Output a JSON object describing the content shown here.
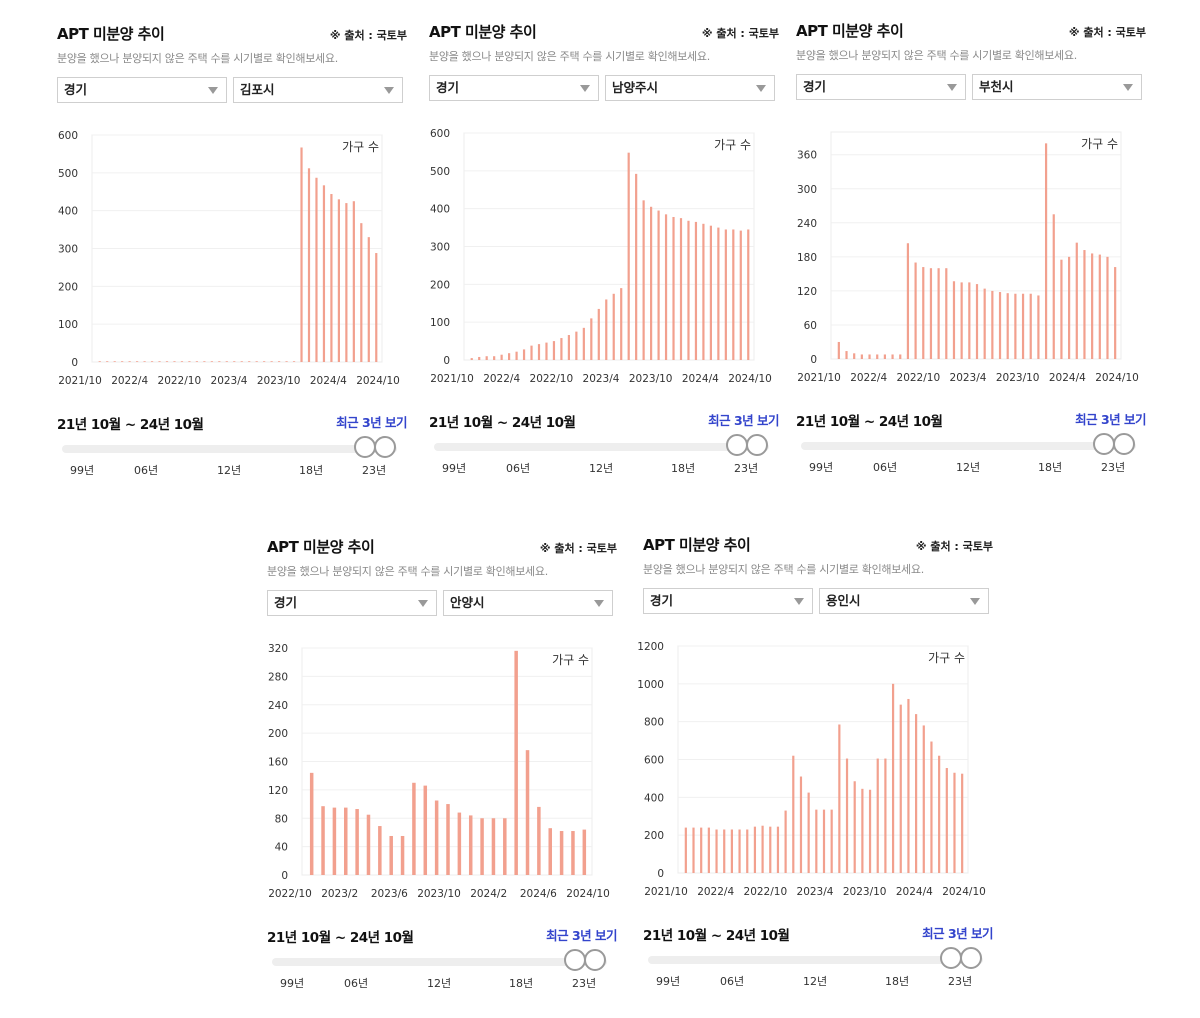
{
  "common": {
    "title": "APT 미분양 추이",
    "source": "※ 출처 : 국토부",
    "description": "분양을 했으나 분양되지 않은 주택 수를 시기별로 확인해보세요.",
    "province": "경기",
    "unit_label": "가구 수",
    "range_text": "21년 10월 ~ 24년 10월",
    "recent_button": "최근 3년 보기",
    "slider_ticks": [
      "99년",
      "06년",
      "12년",
      "18년",
      "23년"
    ],
    "bar_color": "#f2a08e"
  },
  "panels": [
    {
      "city": "김포시",
      "chart_data": {
        "type": "bar",
        "series": [
          {
            "values": [
              2,
              2,
              2,
              2,
              2,
              2,
              2,
              2,
              2,
              2,
              2,
              2,
              2,
              2,
              2,
              2,
              2,
              2,
              2,
              2,
              2,
              2,
              2,
              2,
              2,
              2,
              2,
              567,
              512,
              487,
              467,
              444,
              430,
              420,
              425,
              367,
              330,
              288
            ]
          }
        ],
        "y_ticks": [
          0,
          100,
          200,
          300,
          400,
          500,
          600
        ],
        "ylim": [
          0,
          600
        ],
        "x_tick_labels": [
          "2021/10",
          "2022/4",
          "2022/10",
          "2023/4",
          "2023/10",
          "2024/4",
          "2024/10"
        ]
      }
    },
    {
      "city": "남양주시",
      "chart_data": {
        "type": "bar",
        "series": [
          {
            "values": [
              5,
              8,
              10,
              10,
              14,
              18,
              22,
              28,
              38,
              42,
              46,
              50,
              58,
              66,
              75,
              85,
              110,
              135,
              160,
              175,
              190,
              548,
              492,
              422,
              405,
              395,
              385,
              378,
              375,
              368,
              365,
              360,
              355,
              350,
              345,
              345,
              342,
              345
            ]
          }
        ],
        "y_ticks": [
          0,
          100,
          200,
          300,
          400,
          500,
          600
        ],
        "ylim": [
          0,
          600
        ],
        "x_tick_labels": [
          "2021/10",
          "2022/4",
          "2022/10",
          "2023/4",
          "2023/10",
          "2024/4",
          "2024/10"
        ]
      }
    },
    {
      "city": "부천시",
      "chart_data": {
        "type": "bar",
        "series": [
          {
            "values": [
              30,
              14,
              10,
              8,
              8,
              8,
              8,
              8,
              8,
              204,
              170,
              162,
              160,
              160,
              160,
              137,
              135,
              135,
              132,
              124,
              120,
              118,
              116,
              115,
              115,
              115,
              112,
              380,
              255,
              175,
              180,
              205,
              192,
              186,
              184,
              180,
              162
            ]
          }
        ],
        "y_ticks": [
          0,
          60,
          120,
          180,
          240,
          300,
          360
        ],
        "ylim": [
          0,
          400
        ],
        "x_tick_labels": [
          "2021/10",
          "2022/4",
          "2022/10",
          "2023/4",
          "2023/10",
          "2024/4",
          "2024/10"
        ]
      }
    },
    {
      "city": "안양시",
      "chart_data": {
        "type": "bar",
        "series": [
          {
            "values": [
              144,
              97,
              95,
              95,
              93,
              85,
              69,
              55,
              55,
              130,
              126,
              105,
              100,
              88,
              84,
              80,
              80,
              80,
              316,
              176,
              96,
              66,
              62,
              62,
              64
            ]
          }
        ],
        "y_ticks": [
          0,
          40,
          80,
          120,
          160,
          200,
          240,
          280,
          320
        ],
        "ylim": [
          0,
          320
        ],
        "x_tick_labels": [
          "2022/10",
          "2023/2",
          "2023/6",
          "2023/10",
          "2024/2",
          "2024/6",
          "2024/10"
        ]
      }
    },
    {
      "city": "용인시",
      "chart_data": {
        "type": "bar",
        "series": [
          {
            "values": [
              240,
              240,
              240,
              240,
              230,
              230,
              230,
              230,
              230,
              245,
              250,
              245,
              245,
              330,
              620,
              510,
              425,
              335,
              335,
              335,
              785,
              605,
              485,
              445,
              440,
              605,
              605,
              1000,
              890,
              920,
              840,
              780,
              695,
              620,
              555,
              530,
              525
            ]
          }
        ],
        "y_ticks": [
          0,
          200,
          400,
          600,
          800,
          1000,
          1200
        ],
        "ylim": [
          0,
          1200
        ],
        "x_tick_labels": [
          "2021/10",
          "2022/4",
          "2022/10",
          "2023/4",
          "2023/10",
          "2024/4",
          "2024/10"
        ]
      }
    }
  ]
}
